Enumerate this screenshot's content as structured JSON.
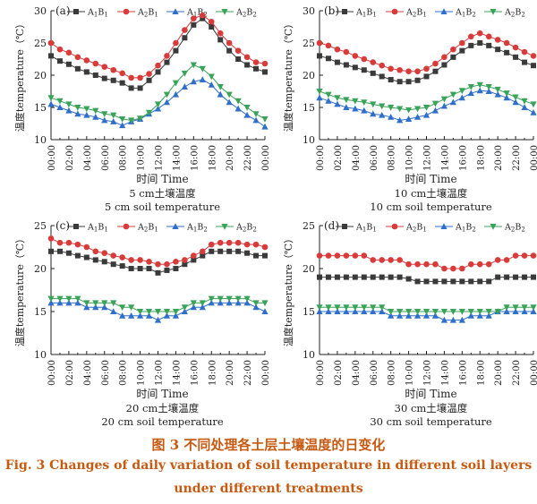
{
  "figure": {
    "caption_cn": "图 3   不同处理各土层土壤温度的日变化",
    "caption_en_line1": "Fig. 3    Changes of daily variation of soil temperature in different soil layers",
    "caption_en_line2": "under different treatments",
    "ylabel": "温度temperature（℃）",
    "xlabel": "时间  Time",
    "colors": {
      "A1B1": "#3a3a3a",
      "A2B1": "#d93a3a",
      "A1B2": "#2f6fc9",
      "A2B2": "#3aa35a"
    },
    "markers": {
      "A1B1": "square",
      "A2B1": "circle",
      "A1B2": "triangle-up",
      "A2B2": "triangle-down"
    }
  },
  "chart_data": [
    {
      "type": "line",
      "panel_label": "(a)",
      "subtitle_cn": "5 cm土壤温度",
      "subtitle_en": "5 cm soil temperature",
      "ylim": [
        10,
        30
      ],
      "yticks": [
        10,
        15,
        20,
        25,
        30
      ],
      "x": [
        "00:00",
        "01:00",
        "02:00",
        "03:00",
        "04:00",
        "05:00",
        "06:00",
        "07:00",
        "08:00",
        "09:00",
        "10:00",
        "11:00",
        "12:00",
        "13:00",
        "14:00",
        "15:00",
        "16:00",
        "17:00",
        "18:00",
        "19:00",
        "20:00",
        "21:00",
        "22:00",
        "23:00",
        "00:00"
      ],
      "xtick_labels": [
        "00:00",
        "02:00",
        "04:00",
        "06:00",
        "08:00",
        "10:00",
        "12:00",
        "14:00",
        "16:00",
        "18:00",
        "20:00",
        "22:00",
        "00:00"
      ],
      "legend": [
        "A1B1",
        "A2B1",
        "A1B2",
        "A2B2"
      ],
      "series": [
        {
          "name": "A1B1",
          "values": [
            23.0,
            22.2,
            21.7,
            21.0,
            20.5,
            20.0,
            19.5,
            19.2,
            18.8,
            18.0,
            18.0,
            19.2,
            20.5,
            22.0,
            23.8,
            25.8,
            27.8,
            28.8,
            27.5,
            25.5,
            23.8,
            22.5,
            21.6,
            21.0,
            20.5
          ]
        },
        {
          "name": "A2B1",
          "values": [
            25.0,
            24.0,
            23.5,
            22.8,
            22.3,
            21.8,
            21.3,
            20.8,
            20.3,
            19.6,
            19.6,
            20.2,
            21.5,
            23.0,
            25.0,
            27.0,
            28.8,
            29.3,
            28.3,
            26.5,
            25.0,
            23.8,
            22.8,
            22.0,
            21.8
          ]
        },
        {
          "name": "A1B2",
          "values": [
            15.5,
            15.0,
            14.5,
            14.0,
            13.8,
            13.5,
            13.0,
            12.8,
            12.2,
            12.8,
            13.2,
            14.0,
            14.8,
            15.8,
            17.0,
            18.2,
            19.0,
            19.3,
            18.5,
            17.0,
            15.8,
            14.8,
            13.8,
            13.0,
            12.0
          ]
        },
        {
          "name": "A2B2",
          "values": [
            16.5,
            16.0,
            15.5,
            15.0,
            14.8,
            14.5,
            14.0,
            13.8,
            13.2,
            13.0,
            13.3,
            14.2,
            15.5,
            17.0,
            18.8,
            20.3,
            21.6,
            21.0,
            19.8,
            18.2,
            17.0,
            16.0,
            15.0,
            14.0,
            13.2
          ]
        }
      ]
    },
    {
      "type": "line",
      "panel_label": "(b)",
      "subtitle_cn": "10 cm土壤温度",
      "subtitle_en": "10 cm soil temperature",
      "ylim": [
        10,
        30
      ],
      "yticks": [
        10,
        15,
        20,
        25,
        30
      ],
      "x": [
        "00:00",
        "01:00",
        "02:00",
        "03:00",
        "04:00",
        "05:00",
        "06:00",
        "07:00",
        "08:00",
        "09:00",
        "10:00",
        "11:00",
        "12:00",
        "13:00",
        "14:00",
        "15:00",
        "16:00",
        "17:00",
        "18:00",
        "19:00",
        "20:00",
        "21:00",
        "22:00",
        "23:00",
        "00:00"
      ],
      "xtick_labels": [
        "00:00",
        "02:00",
        "04:00",
        "06:00",
        "08:00",
        "10:00",
        "12:00",
        "14:00",
        "16:00",
        "18:00",
        "20:00",
        "22:00",
        "00:00"
      ],
      "legend": [
        "A1B1",
        "A2B1",
        "A1B2",
        "A2B2"
      ],
      "series": [
        {
          "name": "A1B1",
          "values": [
            23.0,
            22.6,
            22.0,
            21.6,
            21.2,
            20.8,
            20.3,
            19.8,
            19.3,
            19.0,
            19.0,
            19.2,
            19.8,
            20.6,
            21.6,
            22.8,
            23.8,
            24.6,
            25.0,
            24.6,
            24.0,
            23.5,
            22.8,
            22.0,
            21.5
          ]
        },
        {
          "name": "A2B1",
          "values": [
            25.0,
            24.6,
            24.0,
            23.6,
            23.0,
            22.5,
            22.0,
            21.5,
            21.0,
            20.8,
            20.6,
            20.6,
            21.0,
            21.8,
            22.8,
            24.0,
            25.0,
            26.0,
            26.5,
            26.0,
            25.5,
            25.0,
            24.3,
            23.6,
            23.0
          ]
        },
        {
          "name": "A1B2",
          "values": [
            16.5,
            16.0,
            15.5,
            15.0,
            14.8,
            14.5,
            14.0,
            13.8,
            13.5,
            13.0,
            13.2,
            13.5,
            13.8,
            14.5,
            15.2,
            15.8,
            16.5,
            17.2,
            17.6,
            17.5,
            17.0,
            16.5,
            15.8,
            15.0,
            14.2
          ]
        },
        {
          "name": "A2B2",
          "values": [
            17.5,
            17.0,
            16.5,
            16.2,
            16.0,
            15.8,
            15.5,
            15.2,
            15.0,
            14.8,
            14.6,
            14.8,
            15.0,
            15.6,
            16.3,
            17.0,
            17.6,
            18.2,
            18.5,
            18.2,
            17.8,
            17.2,
            16.6,
            16.0,
            15.5
          ]
        }
      ]
    },
    {
      "type": "line",
      "panel_label": "(c)",
      "subtitle_cn": "20 cm土壤温度",
      "subtitle_en": "20 cm soil temperature",
      "ylim": [
        10,
        25
      ],
      "yticks": [
        10,
        15,
        20,
        25
      ],
      "x": [
        "00:00",
        "01:00",
        "02:00",
        "03:00",
        "04:00",
        "05:00",
        "06:00",
        "07:00",
        "08:00",
        "09:00",
        "10:00",
        "11:00",
        "12:00",
        "13:00",
        "14:00",
        "15:00",
        "16:00",
        "17:00",
        "18:00",
        "19:00",
        "20:00",
        "21:00",
        "22:00",
        "23:00",
        "00:00"
      ],
      "xtick_labels": [
        "00:00",
        "02:00",
        "04:00",
        "06:00",
        "08:00",
        "10:00",
        "12:00",
        "14:00",
        "16:00",
        "18:00",
        "20:00",
        "22:00",
        "00:00"
      ],
      "legend": [
        "A1B1",
        "A2B1",
        "A1B2",
        "A2B2"
      ],
      "series": [
        {
          "name": "A1B1",
          "values": [
            22.0,
            22.0,
            21.8,
            21.5,
            21.3,
            21.0,
            20.8,
            20.5,
            20.3,
            20.0,
            20.0,
            20.0,
            19.5,
            19.8,
            20.0,
            20.5,
            21.0,
            21.5,
            22.0,
            22.0,
            22.0,
            22.0,
            21.8,
            21.5,
            21.5
          ]
        },
        {
          "name": "A2B1",
          "values": [
            23.5,
            23.0,
            23.0,
            22.8,
            22.5,
            22.0,
            21.8,
            21.5,
            21.3,
            21.0,
            21.0,
            20.8,
            20.5,
            20.5,
            20.8,
            21.0,
            21.5,
            22.0,
            22.8,
            23.0,
            23.0,
            23.0,
            22.8,
            22.8,
            22.5
          ]
        },
        {
          "name": "A1B2",
          "values": [
            16.0,
            16.0,
            16.0,
            16.0,
            15.5,
            15.5,
            15.5,
            15.0,
            14.5,
            14.5,
            14.5,
            14.5,
            14.0,
            14.5,
            14.5,
            15.0,
            15.5,
            15.5,
            16.0,
            16.0,
            16.0,
            16.0,
            16.0,
            15.5,
            15.0
          ]
        },
        {
          "name": "A2B2",
          "values": [
            16.5,
            16.5,
            16.5,
            16.5,
            16.0,
            16.0,
            16.0,
            16.0,
            15.5,
            15.5,
            15.0,
            15.0,
            15.0,
            15.0,
            15.0,
            15.5,
            16.0,
            16.0,
            16.5,
            16.5,
            16.5,
            16.5,
            16.5,
            16.0,
            16.0
          ]
        }
      ]
    },
    {
      "type": "line",
      "panel_label": "(d)",
      "subtitle_cn": "30 cm土壤温度",
      "subtitle_en": "30 cm soil temperature",
      "ylim": [
        10,
        25
      ],
      "yticks": [
        10,
        15,
        20,
        25
      ],
      "x": [
        "00:00",
        "01:00",
        "02:00",
        "03:00",
        "04:00",
        "05:00",
        "06:00",
        "07:00",
        "08:00",
        "09:00",
        "10:00",
        "11:00",
        "12:00",
        "13:00",
        "14:00",
        "15:00",
        "16:00",
        "17:00",
        "18:00",
        "19:00",
        "20:00",
        "21:00",
        "22:00",
        "23:00",
        "00:00"
      ],
      "xtick_labels": [
        "00:00",
        "02:00",
        "04:00",
        "06:00",
        "08:00",
        "10:00",
        "12:00",
        "14:00",
        "16:00",
        "18:00",
        "20:00",
        "22:00",
        "00:00"
      ],
      "legend": [
        "A1B1",
        "A2B1",
        "A1B2",
        "A2B2"
      ],
      "series": [
        {
          "name": "A1B1",
          "values": [
            19.0,
            19.0,
            19.0,
            19.0,
            19.0,
            19.0,
            19.0,
            19.0,
            19.0,
            19.0,
            18.8,
            18.5,
            18.5,
            18.5,
            18.5,
            18.5,
            18.5,
            18.5,
            18.5,
            18.5,
            19.0,
            19.0,
            19.0,
            19.0,
            19.0
          ]
        },
        {
          "name": "A2B1",
          "values": [
            21.5,
            21.5,
            21.5,
            21.5,
            21.5,
            21.5,
            21.0,
            21.0,
            21.0,
            21.0,
            20.5,
            20.5,
            20.5,
            20.5,
            20.0,
            20.0,
            20.0,
            20.5,
            20.5,
            20.5,
            21.0,
            21.0,
            21.5,
            21.5,
            21.5
          ]
        },
        {
          "name": "A1B2",
          "values": [
            15.0,
            15.0,
            15.0,
            15.0,
            15.0,
            15.0,
            15.0,
            15.0,
            14.5,
            14.5,
            14.5,
            14.5,
            14.5,
            14.5,
            14.0,
            14.0,
            14.0,
            14.5,
            14.5,
            14.5,
            15.0,
            15.0,
            15.0,
            15.0,
            15.0
          ]
        },
        {
          "name": "A2B2",
          "values": [
            15.5,
            15.5,
            15.5,
            15.5,
            15.5,
            15.5,
            15.5,
            15.5,
            15.0,
            15.0,
            15.0,
            15.0,
            15.0,
            15.0,
            15.0,
            15.0,
            15.0,
            15.0,
            15.0,
            15.0,
            15.0,
            15.5,
            15.5,
            15.5,
            15.5
          ]
        }
      ]
    }
  ]
}
